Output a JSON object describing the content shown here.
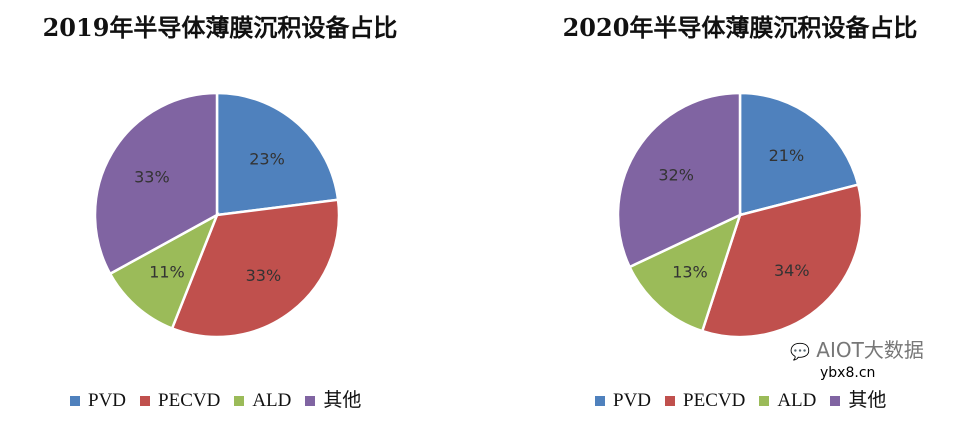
{
  "chart_data": [
    {
      "type": "pie",
      "title": "2019年半导体薄膜沉积设备占比",
      "categories": [
        "PVD",
        "PECVD",
        "ALD",
        "其他"
      ],
      "values": [
        23,
        33,
        11,
        33
      ],
      "data_labels": [
        "23%",
        "33%",
        "11%",
        "33%"
      ],
      "colors": [
        "#4F81BD",
        "#C0504D",
        "#9BBB59",
        "#8064A2"
      ],
      "legend": "bottom"
    },
    {
      "type": "pie",
      "title": "2020年半导体薄膜沉积设备占比",
      "categories": [
        "PVD",
        "PECVD",
        "ALD",
        "其他"
      ],
      "values": [
        21,
        34,
        13,
        32
      ],
      "data_labels": [
        "21%",
        "34%",
        "13%",
        "32%"
      ],
      "colors": [
        "#4F81BD",
        "#C0504D",
        "#9BBB59",
        "#8064A2"
      ],
      "legend": "bottom"
    }
  ],
  "watermark": {
    "brand": "AIOT大数据",
    "site": "ybx8.cn"
  }
}
